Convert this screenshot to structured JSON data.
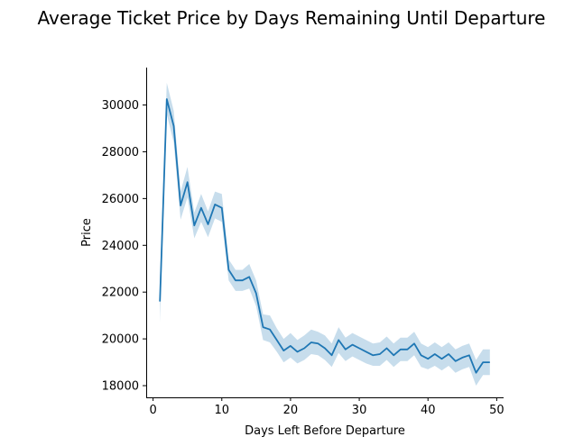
{
  "chart_data": {
    "type": "line",
    "title": "Average Ticket Price by Days Remaining Until Departure",
    "xlabel": "Days Left Before Departure",
    "ylabel": "Price",
    "xlim": [
      -1,
      51
    ],
    "ylim": [
      17500,
      31600
    ],
    "xticks": [
      0,
      10,
      20,
      30,
      40,
      50
    ],
    "yticks": [
      18000,
      20000,
      22000,
      24000,
      26000,
      28000,
      30000
    ],
    "grid": false,
    "line_color": "#1f77b4",
    "band_color": "#1f77b4",
    "series": [
      {
        "x": [
          1,
          2,
          3,
          4,
          5,
          6,
          7,
          8,
          9,
          10,
          11,
          12,
          13,
          14,
          15,
          16,
          17,
          18,
          19,
          20,
          21,
          22,
          23,
          24,
          25,
          26,
          27,
          28,
          29,
          30,
          31,
          32,
          33,
          34,
          35,
          36,
          37,
          38,
          39,
          40,
          41,
          42,
          43,
          44,
          45,
          46,
          47,
          48,
          49
        ],
        "values": [
          21600,
          30250,
          29100,
          25700,
          26700,
          24850,
          25600,
          24900,
          25750,
          25600,
          22950,
          22500,
          22500,
          22650,
          21950,
          20500,
          20400,
          19950,
          19500,
          19700,
          19450,
          19600,
          19850,
          19800,
          19600,
          19300,
          19950,
          19550,
          19750,
          19600,
          19450,
          19300,
          19350,
          19600,
          19300,
          19550,
          19550,
          19800,
          19300,
          19150,
          19350,
          19150,
          19350,
          19050,
          19200,
          19300,
          18550,
          19000,
          19000
        ],
        "ci_low": [
          20700,
          29600,
          28400,
          25100,
          26050,
          24300,
          25000,
          24350,
          25150,
          25000,
          22500,
          22050,
          22050,
          22150,
          21400,
          19950,
          19850,
          19450,
          19000,
          19200,
          18950,
          19100,
          19350,
          19300,
          19100,
          18800,
          19400,
          19050,
          19250,
          19100,
          18950,
          18850,
          18850,
          19100,
          18800,
          19050,
          19050,
          19300,
          18800,
          18700,
          18850,
          18650,
          18850,
          18550,
          18700,
          18800,
          18000,
          18450,
          18450
        ],
        "ci_high": [
          22500,
          30950,
          29750,
          26300,
          27350,
          25400,
          26200,
          25450,
          26300,
          26200,
          23400,
          22950,
          22950,
          23200,
          22500,
          21050,
          21000,
          20450,
          20000,
          20250,
          19950,
          20150,
          20400,
          20300,
          20150,
          19800,
          20500,
          20050,
          20250,
          20100,
          19950,
          19800,
          19850,
          20100,
          19800,
          20050,
          20050,
          20300,
          19800,
          19650,
          19850,
          19650,
          19850,
          19550,
          19700,
          19800,
          19100,
          19550,
          19550
        ]
      }
    ]
  }
}
